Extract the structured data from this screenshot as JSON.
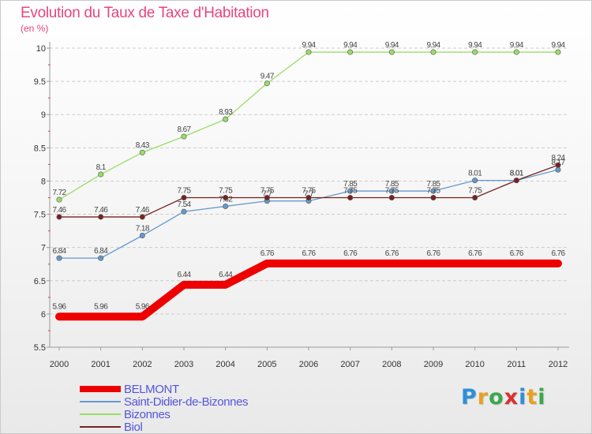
{
  "title": "Evolution du Taux de Taxe d'Habitation",
  "unit": "(en %)",
  "logo": {
    "text": "Proxiti",
    "colors": [
      "#2f8fd8",
      "#e8a020",
      "#3aa84a",
      "#d83030",
      "#2f8fd8",
      "#e8a020",
      "#3aa84a"
    ]
  },
  "chart_data": {
    "type": "line",
    "title": "Evolution du Taux de Taxe d'Habitation",
    "ylabel": "(en %)",
    "xlabel": "",
    "x": [
      "2000",
      "2001",
      "2002",
      "2003",
      "2004",
      "2005",
      "2006",
      "2007",
      "2008",
      "2009",
      "2010",
      "2011",
      "2012"
    ],
    "ylim": [
      5.5,
      10
    ],
    "yticks": [
      "5.5",
      "6",
      "6.5",
      "7",
      "7.5",
      "8",
      "8.5",
      "9",
      "9.5",
      "10"
    ],
    "grid": "horizontal dashed",
    "legend_position": "bottom-left",
    "series": [
      {
        "name": "BELMONT",
        "color": "#ee0000",
        "values": [
          5.96,
          5.96,
          5.96,
          6.44,
          6.44,
          6.76,
          6.76,
          6.76,
          6.76,
          6.76,
          6.76,
          6.76,
          6.76
        ],
        "labels": [
          "5.96",
          "5.96",
          "5.96",
          "6.44",
          "6.44",
          "6.76",
          "6.76",
          "6.76",
          "6.76",
          "6.76",
          "6.76",
          "6.76",
          "6.76"
        ]
      },
      {
        "name": "Saint-Didier-de-Bizonnes",
        "color": "#6699cc",
        "values": [
          6.84,
          6.84,
          7.18,
          7.54,
          7.62,
          7.7,
          7.7,
          7.85,
          7.85,
          7.85,
          8.01,
          8.01,
          8.17
        ],
        "labels": [
          "6.84",
          "6.84",
          "7.18",
          "7.54",
          "7.62",
          "7.7",
          "7.7",
          "7.85",
          "7.85",
          "7.85",
          "8.01",
          "8.01",
          "8.17"
        ]
      },
      {
        "name": "Bizonnes",
        "color": "#99dd66",
        "values": [
          7.72,
          8.1,
          8.43,
          8.67,
          8.93,
          9.47,
          9.94,
          9.94,
          9.94,
          9.94,
          9.94,
          9.94,
          9.94
        ],
        "labels": [
          "7.72",
          "8.1",
          "8.43",
          "8.67",
          "8.93",
          "9.47",
          "9.94",
          "9.94",
          "9.94",
          "9.94",
          "9.94",
          "9.94",
          "9.94"
        ]
      },
      {
        "name": "Biol",
        "color": "#772222",
        "values": [
          7.46,
          7.46,
          7.46,
          7.75,
          7.75,
          7.75,
          7.75,
          7.75,
          7.75,
          7.75,
          7.75,
          8.01,
          8.24
        ],
        "labels": [
          "7.46",
          "7.46",
          "7.46",
          "7.75",
          "7.75",
          "7.75",
          "7.75",
          "7.75",
          "7.75",
          "7.75",
          "7.75",
          "8.01",
          "8.24"
        ]
      }
    ]
  }
}
